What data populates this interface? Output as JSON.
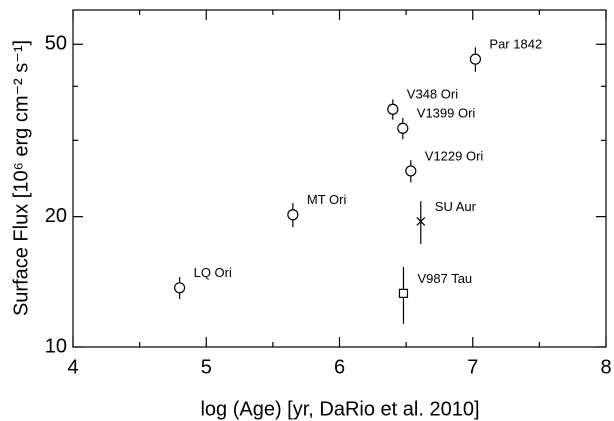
{
  "chart_data": {
    "type": "scatter",
    "x_label": "log (Age) [yr, DaRio et al. 2010]",
    "y_label": "Surface Flux [10⁶ erg cm⁻² s⁻¹]",
    "labels": [
      "LQ Ori",
      "MT Ori",
      "V348 Ori",
      "V1399 Ori",
      "V1229 Ori",
      "Par 1842",
      "SU Aur",
      "V987 Tau"
    ],
    "x": [
      4.8,
      5.65,
      6.4,
      6.475,
      6.535,
      7.02,
      6.61,
      6.48
    ],
    "values": [
      13.7,
      20.2,
      35.4,
      32.0,
      25.5,
      46.2,
      19.5,
      13.3
    ],
    "errors": [
      0.8,
      1.3,
      1.9,
      1.8,
      1.5,
      3.0,
      2.2,
      2.0
    ],
    "markers": [
      "circle",
      "circle",
      "circle",
      "circle",
      "circle",
      "circle",
      "cross",
      "square"
    ],
    "color": "#000000",
    "xlim": [
      4,
      8
    ],
    "xticks": [
      4,
      5,
      6,
      7,
      8
    ],
    "xminor": [
      4.5,
      5.5,
      6.5,
      7.5
    ],
    "ylim": [
      10,
      60
    ],
    "yticks": [
      10,
      20,
      50
    ],
    "yminor": [
      30,
      40
    ],
    "ylog": true
  }
}
